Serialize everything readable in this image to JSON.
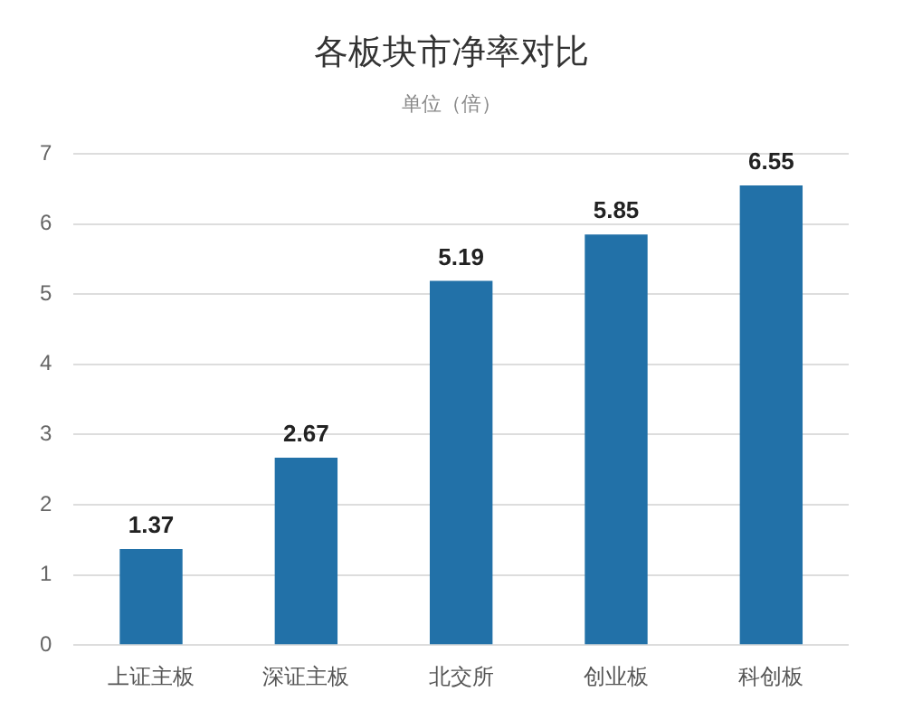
{
  "chart_data": {
    "type": "bar",
    "title": "各板块市净率对比",
    "subtitle": "单位（倍）",
    "categories": [
      "上证主板",
      "深证主板",
      "北交所",
      "创业板",
      "科创板"
    ],
    "values": [
      1.37,
      2.67,
      5.19,
      5.85,
      6.55
    ],
    "color": "#2271a8",
    "ylim": [
      0,
      7
    ],
    "yticks": [
      0,
      1,
      2,
      3,
      4,
      5,
      6,
      7
    ],
    "grid": "y",
    "data_labels": true
  }
}
